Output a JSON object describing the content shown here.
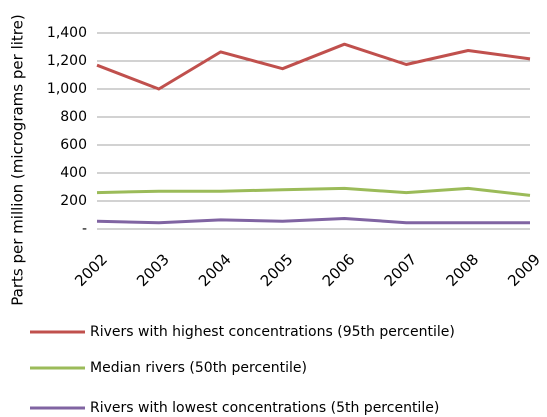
{
  "chart_data": {
    "type": "line",
    "y_label": "Parts per million (micrograms per litre)",
    "categories": [
      "2002",
      "2003",
      "2004",
      "2005",
      "2006",
      "2007",
      "2008",
      "2009"
    ],
    "series": [
      {
        "name": "Rivers with highest concentrations (95th percentile)",
        "color": "#c0504d",
        "values": [
          1170,
          1000,
          1265,
          1145,
          1320,
          1175,
          1275,
          1215
        ]
      },
      {
        "name": "Median rivers (50th percentile)",
        "color": "#9bbb59",
        "values": [
          260,
          270,
          270,
          280,
          290,
          260,
          290,
          240
        ]
      },
      {
        "name": "Rivers with lowest concentrations (5th percentile)",
        "color": "#8064a2",
        "values": [
          55,
          45,
          65,
          55,
          75,
          45,
          45,
          45
        ]
      }
    ],
    "ylim": [
      0,
      1400
    ],
    "yticks": [
      {
        "value": 0,
        "label": "-"
      },
      200,
      400,
      600,
      800,
      {
        "value": 1000,
        "label": "1,000"
      },
      {
        "value": 1200,
        "label": "1,200"
      },
      {
        "value": 1400,
        "label": "1,400"
      }
    ],
    "grid": true
  }
}
